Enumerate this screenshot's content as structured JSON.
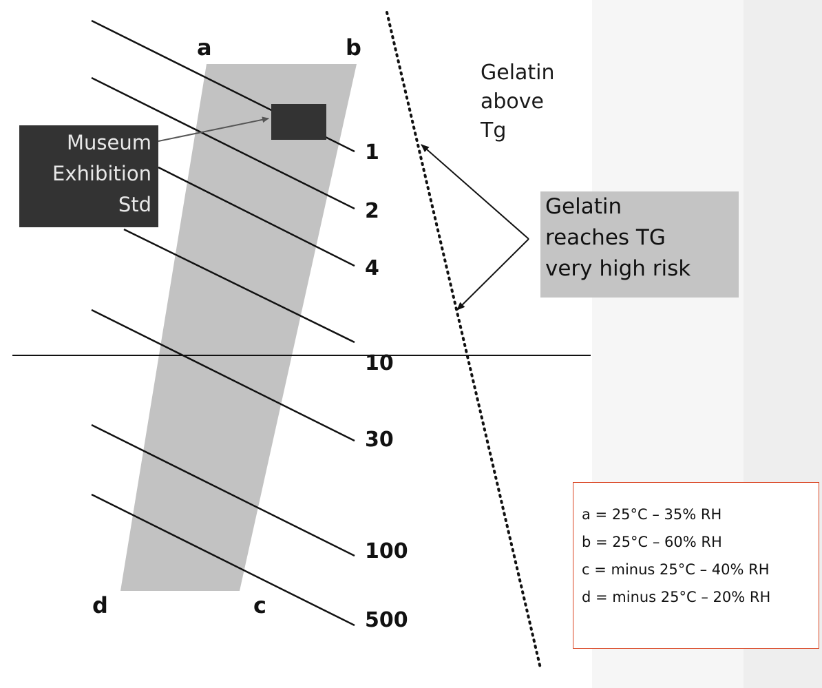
{
  "corners": {
    "a": "a",
    "b": "b",
    "c": "c",
    "d": "d"
  },
  "lines": [
    {
      "label": "1"
    },
    {
      "label": "2"
    },
    {
      "label": "4"
    },
    {
      "label": "10"
    },
    {
      "label": "30"
    },
    {
      "label": "100"
    },
    {
      "label": "500"
    }
  ],
  "museum_box": {
    "lines": [
      "Museum",
      "Exhibition",
      "Std"
    ]
  },
  "region_label": {
    "lines": [
      "Gelatin",
      "above",
      "Tg"
    ]
  },
  "risk_callout": {
    "lines": [
      "Gelatin",
      "reaches TG",
      "very high risk"
    ]
  },
  "legend": {
    "items": [
      {
        "text": "a = 25°C – 35% RH"
      },
      {
        "text": "b = 25°C – 60% RH"
      },
      {
        "text": "c = minus 25°C – 40% RH"
      },
      {
        "text": "d = minus 25°C – 20% RH"
      }
    ]
  },
  "colors": {
    "band": "#c2c2c2",
    "museum_box": "#333333",
    "callout_bg": "#c4c4c4",
    "legend_border": "#d9411e",
    "lines": "#111111"
  }
}
